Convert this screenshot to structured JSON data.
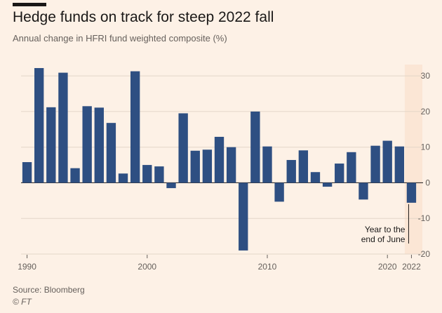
{
  "title": "Hedge funds on track for steep 2022 fall",
  "subtitle": "Annual change in HFRI fund weighted composite (%)",
  "source": "Source: Bloomberg",
  "credit": "© FT",
  "colors": {
    "bar": "#2e4f82",
    "highlight": "#fbe6d5",
    "grid": "#e3d6c8",
    "zero": "#33302e",
    "text": "#66605c"
  },
  "chart_data": {
    "type": "bar",
    "title": "Hedge funds on track for steep 2022 fall",
    "ylabel": "Annual change in HFRI fund weighted composite (%)",
    "xlim": [
      1990,
      2022
    ],
    "ylim": [
      -20,
      32
    ],
    "yticks": [
      30,
      20,
      10,
      0,
      -10,
      -20
    ],
    "xtick_labels": [
      {
        "value": 1990,
        "label": "1990"
      },
      {
        "value": 2000,
        "label": "2000"
      },
      {
        "value": 2010,
        "label": "2010"
      },
      {
        "value": 2020,
        "label": "2020"
      },
      {
        "value": 2022,
        "label": "2022"
      }
    ],
    "highlighted_category": 2022,
    "grid": true,
    "years": [
      1990,
      1991,
      1992,
      1993,
      1994,
      1995,
      1996,
      1997,
      1998,
      1999,
      2000,
      2001,
      2002,
      2003,
      2004,
      2005,
      2006,
      2007,
      2008,
      2009,
      2010,
      2011,
      2012,
      2013,
      2014,
      2015,
      2016,
      2017,
      2018,
      2019,
      2020,
      2021,
      2022
    ],
    "values": [
      5.8,
      32.2,
      21.2,
      30.9,
      4.1,
      21.5,
      21.1,
      16.8,
      2.6,
      31.3,
      5.0,
      4.6,
      -1.5,
      19.5,
      9.0,
      9.3,
      12.9,
      10.0,
      -19.0,
      20.0,
      10.2,
      -5.3,
      6.4,
      9.1,
      3.0,
      -1.1,
      5.4,
      8.6,
      -4.7,
      10.4,
      11.8,
      10.2,
      -5.6
    ],
    "annotation": {
      "lines": [
        "Year to the",
        "end of June"
      ],
      "category": 2022
    }
  }
}
